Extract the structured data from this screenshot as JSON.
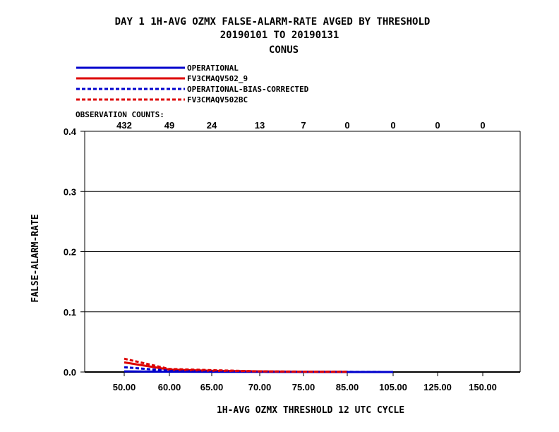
{
  "chart_data": {
    "type": "line",
    "title_line1": "DAY 1   1H-AVG OZMX FALSE-ALARM-RATE   AVGED BY THRESHOLD",
    "title_line2": "20190101 TO 20190131",
    "title_line3": "CONUS",
    "xlabel": "1H-AVG OZMX THRESHOLD     12 UTC CYCLE",
    "ylabel": "FALSE-ALARM-RATE",
    "obs_label": "OBSERVATION COUNTS:",
    "categories": [
      "50.00",
      "60.00",
      "65.00",
      "70.00",
      "75.00",
      "85.00",
      "105.00",
      "125.00",
      "150.00"
    ],
    "obs_counts": [
      "432",
      "49",
      "24",
      "13",
      "7",
      "0",
      "0",
      "0",
      "0"
    ],
    "y_ticks": [
      "0.0",
      "0.1",
      "0.2",
      "0.3",
      "0.4"
    ],
    "ylim": [
      0,
      0.4
    ],
    "grid": true,
    "series": [
      {
        "name": "OPERATIONAL",
        "color": "#0000cc",
        "dash": false,
        "values": [
          0.001,
          0.0005,
          0.0003,
          0.0002,
          0.0001,
          0.0,
          0.0,
          null,
          null
        ]
      },
      {
        "name": "FV3CMAQV502_9",
        "color": "#dd0000",
        "dash": false,
        "values": [
          0.016,
          0.004,
          0.002,
          0.001,
          0.0005,
          0.0002,
          null,
          null,
          null
        ]
      },
      {
        "name": "OPERATIONAL-BIAS-CORRECTED",
        "color": "#0000cc",
        "dash": true,
        "values": [
          0.008,
          0.002,
          0.001,
          0.0005,
          0.0003,
          0.0002,
          0.0,
          null,
          null
        ]
      },
      {
        "name": "FV3CMAQV502BC",
        "color": "#dd0000",
        "dash": true,
        "values": [
          0.022,
          0.005,
          0.003,
          0.001,
          0.0006,
          0.0003,
          null,
          null,
          null
        ]
      }
    ]
  }
}
